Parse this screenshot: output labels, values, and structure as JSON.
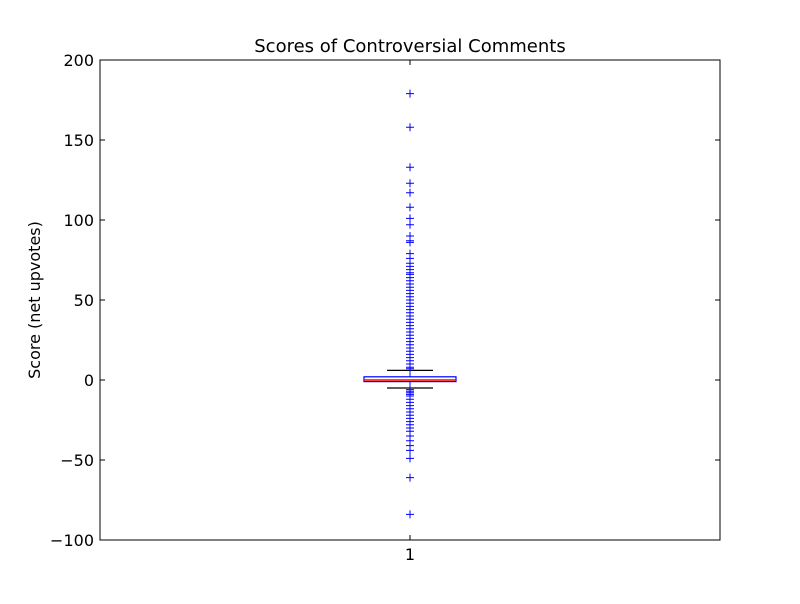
{
  "chart_data": {
    "type": "box",
    "title": "Scores of Controversial Comments",
    "xlabel": "",
    "ylabel": "Score (net upvotes)",
    "ylim": [
      -100,
      200
    ],
    "yticks": [
      -100,
      -50,
      0,
      50,
      100,
      150,
      200
    ],
    "ytick_labels": [
      "−100",
      "−50",
      "0",
      "50",
      "100",
      "150",
      "200"
    ],
    "categories": [
      "1"
    ],
    "grid": false,
    "colors": {
      "box": "#0000ff",
      "median": "#ff0000",
      "whisker": "#000000",
      "flier": "#0000ff"
    },
    "series": [
      {
        "box": {
          "q1": -1,
          "median": 0,
          "q3": 2,
          "whisker_low": -5,
          "whisker_high": 6
        },
        "fliers": [
          179,
          158,
          133,
          123,
          117,
          108,
          101,
          97,
          90,
          87,
          86,
          79,
          76,
          73,
          71,
          69,
          67,
          66,
          64,
          62,
          60,
          58,
          56,
          54,
          52,
          50,
          48,
          46,
          44,
          42,
          40,
          38,
          36,
          34,
          32,
          30,
          28,
          26,
          24,
          22,
          20,
          18,
          16,
          14,
          12,
          10,
          8,
          7,
          -6,
          -7,
          -8,
          -9,
          -10,
          -12,
          -14,
          -16,
          -18,
          -20,
          -22,
          -24,
          -26,
          -28,
          -30,
          -32,
          -35,
          -38,
          -41,
          -44,
          -49,
          -61,
          -84
        ]
      }
    ]
  }
}
